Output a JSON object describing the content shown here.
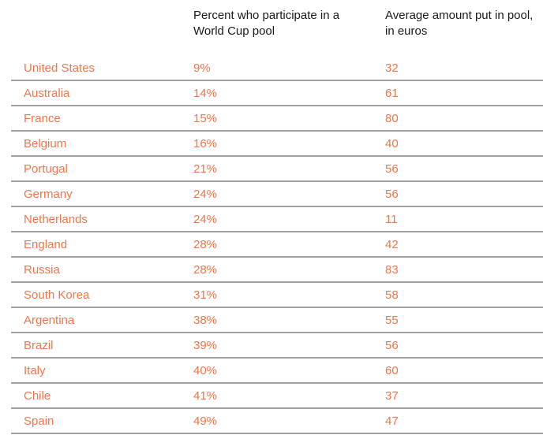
{
  "colors": {
    "accent_orange": "#F0764B",
    "divider_gray": "#A3A3A3",
    "header_text": "#1A1A1A",
    "background": "#FFFFFF"
  },
  "chart_data": {
    "type": "table",
    "columns": [
      "",
      "Percent who participate in a\nWorld Cup pool",
      "Average amount put in pool,\nin euros"
    ],
    "rows": [
      {
        "country": "United States",
        "percent": "9%",
        "amount": "32"
      },
      {
        "country": "Australia",
        "percent": "14%",
        "amount": "61"
      },
      {
        "country": "France",
        "percent": "15%",
        "amount": "80"
      },
      {
        "country": "Belgium",
        "percent": "16%",
        "amount": "40"
      },
      {
        "country": "Portugal",
        "percent": "21%",
        "amount": "56"
      },
      {
        "country": "Germany",
        "percent": "24%",
        "amount": "56"
      },
      {
        "country": "Netherlands",
        "percent": "24%",
        "amount": "11"
      },
      {
        "country": "England",
        "percent": "28%",
        "amount": "42"
      },
      {
        "country": "Russia",
        "percent": "28%",
        "amount": "83"
      },
      {
        "country": "South Korea",
        "percent": "31%",
        "amount": "58"
      },
      {
        "country": "Argentina",
        "percent": "38%",
        "amount": "55"
      },
      {
        "country": "Brazil",
        "percent": "39%",
        "amount": "56"
      },
      {
        "country": "Italy",
        "percent": "40%",
        "amount": "60"
      },
      {
        "country": "Chile",
        "percent": "41%",
        "amount": "37"
      },
      {
        "country": "Spain",
        "percent": "49%",
        "amount": "47"
      }
    ]
  }
}
